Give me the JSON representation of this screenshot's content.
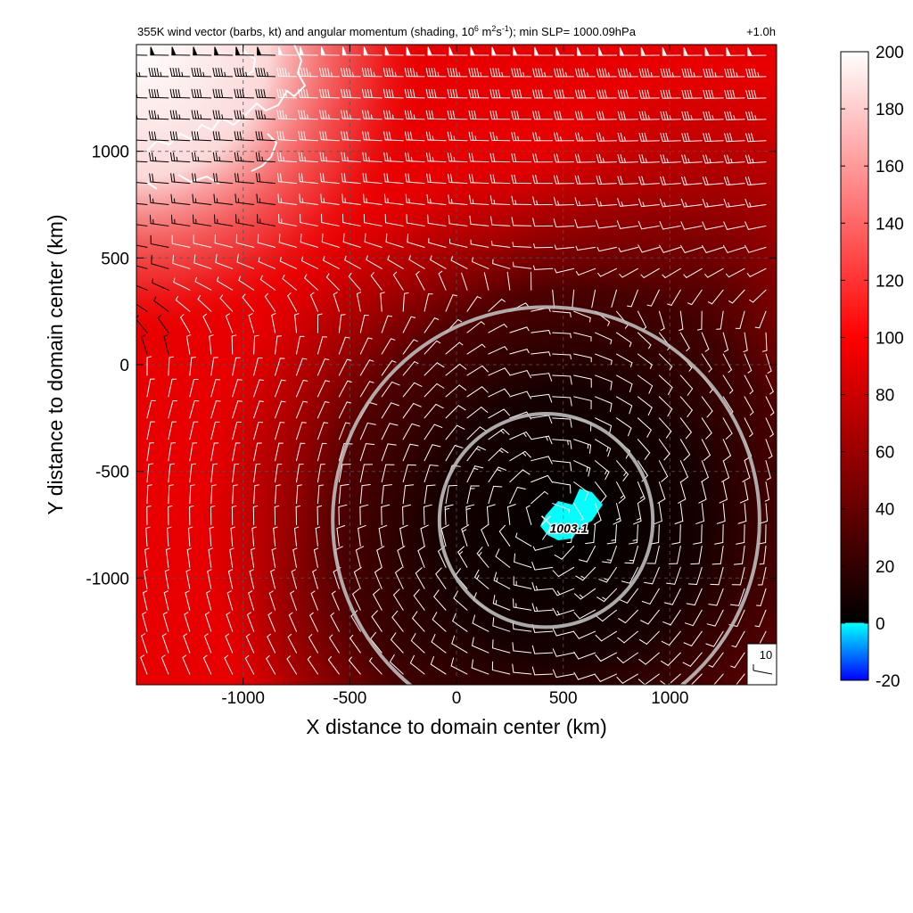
{
  "chart_data": {
    "type": "heatmap",
    "title": "355K wind vector (barbs, kt) and angular momentum (shading, 10",
    "title_sup1": "6",
    "title_mid1": " m",
    "title_sup2": "2",
    "title_mid2": "s",
    "title_sup3": "-1",
    "title_end": "); min SLP= 1000.09hPa",
    "time_label": "+1.0h",
    "xlabel": "X distance to domain center (km)",
    "ylabel": "Y distance to domain center (km)",
    "xlim": [
      -1500,
      1500
    ],
    "ylim": [
      -1500,
      1500
    ],
    "xticks": [
      -1000,
      -500,
      0,
      500,
      1000
    ],
    "yticks": [
      1000,
      500,
      0,
      -500,
      -1000
    ],
    "xtick_labels": [
      "-1000",
      "-500",
      "0",
      "500",
      "1000"
    ],
    "ytick_labels": [
      "1000",
      "500",
      "0",
      "-500",
      "-1000"
    ],
    "grid": true,
    "colorbar": {
      "range": [
        -20,
        200
      ],
      "tick_values": [
        200,
        180,
        160,
        140,
        120,
        100,
        80,
        60,
        40,
        20,
        0,
        -20
      ],
      "tick_labels": [
        "200",
        "180",
        "160",
        "140",
        "120",
        "100",
        "80",
        "60",
        "40",
        "20",
        "0",
        "-20"
      ],
      "colors": {
        "low": "#0000ff",
        "zero": "#00ffff",
        "dark": "#000000",
        "mid": "#ff0000",
        "high": "#ffffff"
      }
    },
    "storm_center": {
      "x": 420,
      "y": -730,
      "label": "1003.1"
    },
    "low_momentum_region_center": {
      "x": 580,
      "y": -690
    },
    "range_rings_km": [
      500,
      1000
    ],
    "barb_grid_spacing_km": 100,
    "reference_barb_label": "10",
    "colors": {
      "barb": "#ffffff",
      "barb_on_light": "#000000",
      "ring": "#bdbdbd",
      "grid": "#555555"
    }
  }
}
